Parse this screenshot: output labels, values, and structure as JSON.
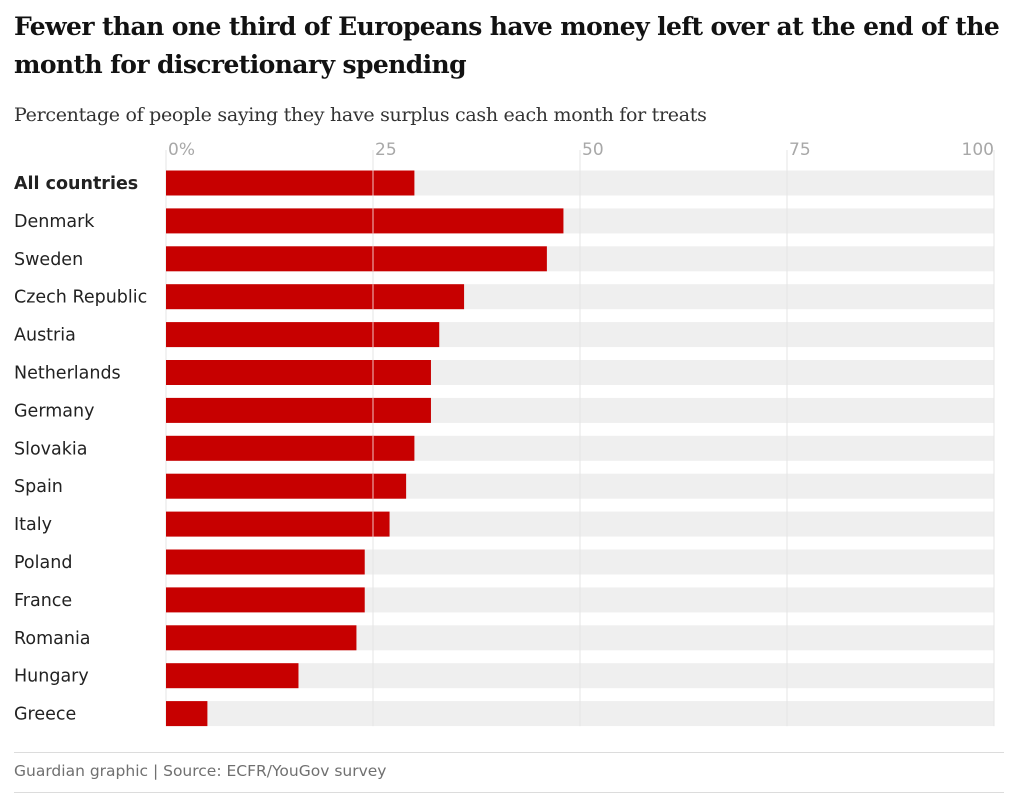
{
  "header": {
    "title": "Fewer than one third of Europeans have money left over at the end of the month for discretionary spending",
    "subtitle": "Percentage of people saying they have surplus cash each month for treats"
  },
  "footer": {
    "source": "Guardian graphic | Source: ECFR/YouGov survey"
  },
  "chart_data": {
    "type": "bar",
    "orientation": "horizontal",
    "title": "Fewer than one third of Europeans have money left over at the end of the month for discretionary spending",
    "subtitle": "Percentage of people saying they have surplus cash each month for treats",
    "xlim": [
      0,
      100
    ],
    "ticks": [
      0,
      25,
      50,
      75,
      100
    ],
    "tick_labels": [
      "0%",
      "25",
      "50",
      "75",
      "100"
    ],
    "tick_position": "top",
    "grid": true,
    "highlighted_categories": [
      "All countries"
    ],
    "categories": [
      "All countries",
      "Denmark",
      "Sweden",
      "Czech Republic",
      "Austria",
      "Netherlands",
      "Germany",
      "Slovakia",
      "Spain",
      "Italy",
      "Poland",
      "France",
      "Romania",
      "Hungary",
      "Greece"
    ],
    "values": [
      30,
      48,
      46,
      36,
      33,
      32,
      32,
      30,
      29,
      27,
      24,
      24,
      23,
      16,
      5
    ],
    "colors": {
      "bar": "#c70000",
      "track": "#efefef",
      "gridline": "#e4e4e4",
      "gridline_over_bar": "#f0c2c2"
    }
  }
}
